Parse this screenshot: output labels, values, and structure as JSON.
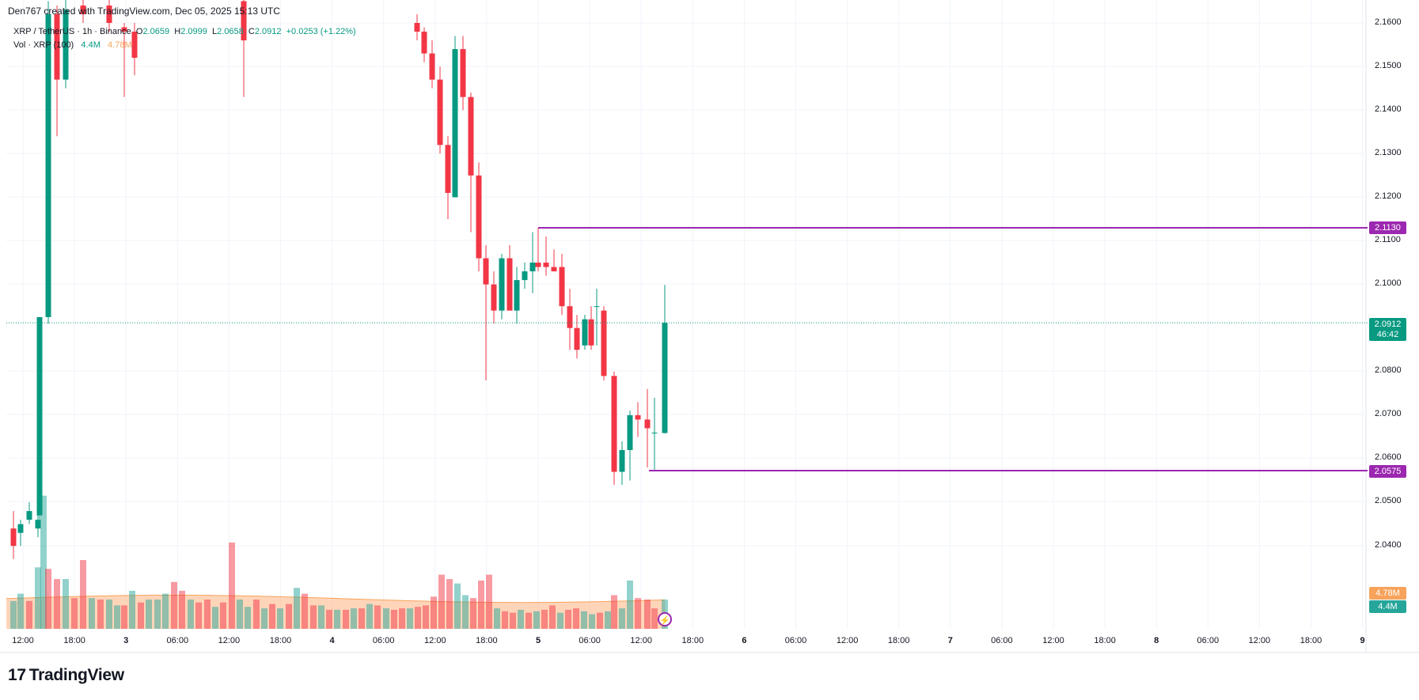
{
  "header": {
    "credit": "Den767 created with TradingView.com, Dec 05, 2025 15:13 UTC"
  },
  "legend": {
    "symbol": "XRP / TetherUS · 1h · Binance",
    "o_label": "O",
    "o_val": "2.0659",
    "h_label": "H",
    "h_val": "2.0999",
    "l_label": "L",
    "l_val": "2.0658",
    "c_label": "C",
    "c_val": "2.0912",
    "change": "+0.0253 (+1.22%)",
    "vol_label": "Vol · XRP (100)",
    "vol_val": "4.4M",
    "vol_ma_val": "4.78M"
  },
  "price_axis": {
    "ticks": [
      "2.1600",
      "2.1500",
      "2.1400",
      "2.1300",
      "2.1200",
      "2.1100",
      "2.1000",
      "2.0800",
      "2.0700",
      "2.0600",
      "2.0500",
      "2.0400"
    ],
    "last_price": "2.0912",
    "countdown": "46:42",
    "level_high": "2.1130",
    "level_low": "2.0575",
    "vol_ma_badge": "4.78M",
    "vol_badge": "4.4M"
  },
  "time_axis": {
    "labels": [
      "12:00",
      "18:00",
      "3",
      "06:00",
      "12:00",
      "18:00",
      "4",
      "06:00",
      "12:00",
      "18:00",
      "5",
      "06:00",
      "12:00",
      "18:00",
      "6",
      "06:00",
      "12:00",
      "18:00",
      "7",
      "06:00",
      "12:00",
      "18:00",
      "8",
      "06:00",
      "12:00",
      "18:00",
      "9"
    ]
  },
  "brand": {
    "name": "TradingView",
    "logo_text": "17"
  },
  "colors": {
    "up": "#089981",
    "down": "#f23645",
    "level": "#9c27b0",
    "vol_ma": "#ffb380"
  },
  "chart_data": {
    "type": "candlestick",
    "symbol": "XRP / TetherUS",
    "interval": "1h",
    "exchange": "Binance",
    "y_range": [
      2.03,
      2.16
    ],
    "horizontal_levels": [
      2.113,
      2.0575
    ],
    "last_price": 2.0912,
    "candles": [
      {
        "t": "12:00",
        "o": 2.052,
        "h": 2.061,
        "l": 2.052,
        "c": 2.056,
        "v": "up"
      },
      {
        "t": "",
        "o": 2.056,
        "h": 2.06,
        "l": 2.054,
        "c": 2.058,
        "v": "up"
      },
      {
        "t": "",
        "o": 2.058,
        "h": 2.062,
        "l": 2.055,
        "c": 2.057,
        "v": "down"
      },
      {
        "t": "",
        "o": 2.057,
        "h": 2.064,
        "l": 2.056,
        "c": 2.061,
        "v": "up"
      },
      {
        "t": "",
        "o": 2.061,
        "h": 2.0924,
        "l": 2.06,
        "c": 2.0924,
        "v": "up"
      },
      {
        "t": "",
        "o": 2.0924,
        "h": 2.17,
        "l": 2.091,
        "c": 2.165,
        "v": "up"
      },
      {
        "t": "",
        "o": 2.162,
        "h": 2.165,
        "l": 2.135,
        "c": 2.147,
        "v": "down"
      },
      {
        "t": "",
        "o": 2.147,
        "h": 2.17,
        "l": 2.145,
        "c": 2.165,
        "v": "up"
      }
    ],
    "volume_ma": 4.78,
    "volume_last": 4.4
  }
}
